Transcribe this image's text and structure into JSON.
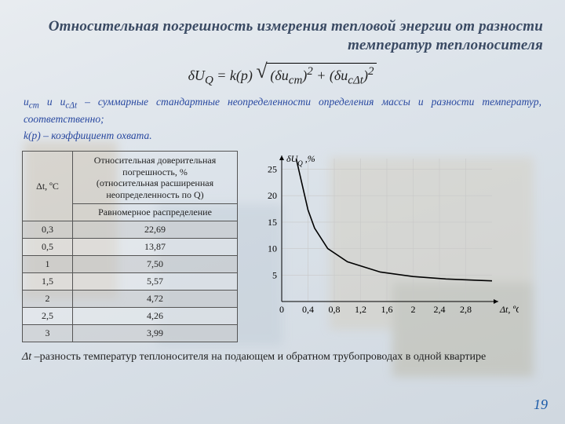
{
  "title": "Относительная погрешность измерения тепловой энергии от разности температур теплоносителя",
  "formula": {
    "lhs": "δU",
    "lhs_sub": "Q",
    "eq": " = k(p)",
    "term1_base": "δu",
    "term1_sub": "cm",
    "term2_base": "δu",
    "term2_sub": "cΔt",
    "sup": "2"
  },
  "defs": {
    "line1_a": "u",
    "line1_sub1": "cm",
    "line1_b": " и u",
    "line1_sub2": "cΔt",
    "line1_c": " – суммарные стандартные неопределенности определения массы и разности температур, соответственно;",
    "line2": "k(p) – коэффициент охвата."
  },
  "table": {
    "col1_header": "Δt, ºC",
    "col2_header_top": "Относительная доверительная погрешность, %\n(относительная расширенная неопределенность по Q)",
    "col2_header_bottom": "Равномерное распределение",
    "rows": [
      {
        "dt": "0,3",
        "val": "22,69"
      },
      {
        "dt": "0,5",
        "val": "13,87"
      },
      {
        "dt": "1",
        "val": "7,50"
      },
      {
        "dt": "1,5",
        "val": "5,57"
      },
      {
        "dt": "2",
        "val": "4,72"
      },
      {
        "dt": "2,5",
        "val": "4,26"
      },
      {
        "dt": "3",
        "val": "3,99"
      }
    ]
  },
  "chart": {
    "type": "line",
    "x_label": "Δt, ºC",
    "y_label": "δU_Q ,%",
    "xlim": [
      0,
      3.2
    ],
    "ylim": [
      0,
      27
    ],
    "xticks": [
      0,
      0.4,
      0.8,
      1.2,
      1.6,
      2.0,
      2.4,
      2.8
    ],
    "xtick_labels": [
      "0",
      "0,4",
      "0,8",
      "1,2",
      "1,6",
      "2",
      "2,4",
      "2,8"
    ],
    "yticks": [
      5,
      10,
      15,
      20,
      25
    ],
    "ytick_labels": [
      "5",
      "10",
      "15",
      "20",
      "25"
    ],
    "grid_color": "#c8c8c8",
    "axis_color": "#000000",
    "line_color": "#000000",
    "line_width": 1.6,
    "background_color": "transparent",
    "data": [
      {
        "x": 0.22,
        "y": 27.0
      },
      {
        "x": 0.3,
        "y": 22.69
      },
      {
        "x": 0.4,
        "y": 17.3
      },
      {
        "x": 0.5,
        "y": 13.87
      },
      {
        "x": 0.7,
        "y": 10.0
      },
      {
        "x": 1.0,
        "y": 7.5
      },
      {
        "x": 1.5,
        "y": 5.57
      },
      {
        "x": 2.0,
        "y": 4.72
      },
      {
        "x": 2.5,
        "y": 4.26
      },
      {
        "x": 3.0,
        "y": 3.99
      },
      {
        "x": 3.2,
        "y": 3.9
      }
    ]
  },
  "footnote": {
    "prefix": "Δt ",
    "text": " –разность температур теплоносителя на подающем и обратном трубопроводах в одной квартире"
  },
  "page_number": "19"
}
